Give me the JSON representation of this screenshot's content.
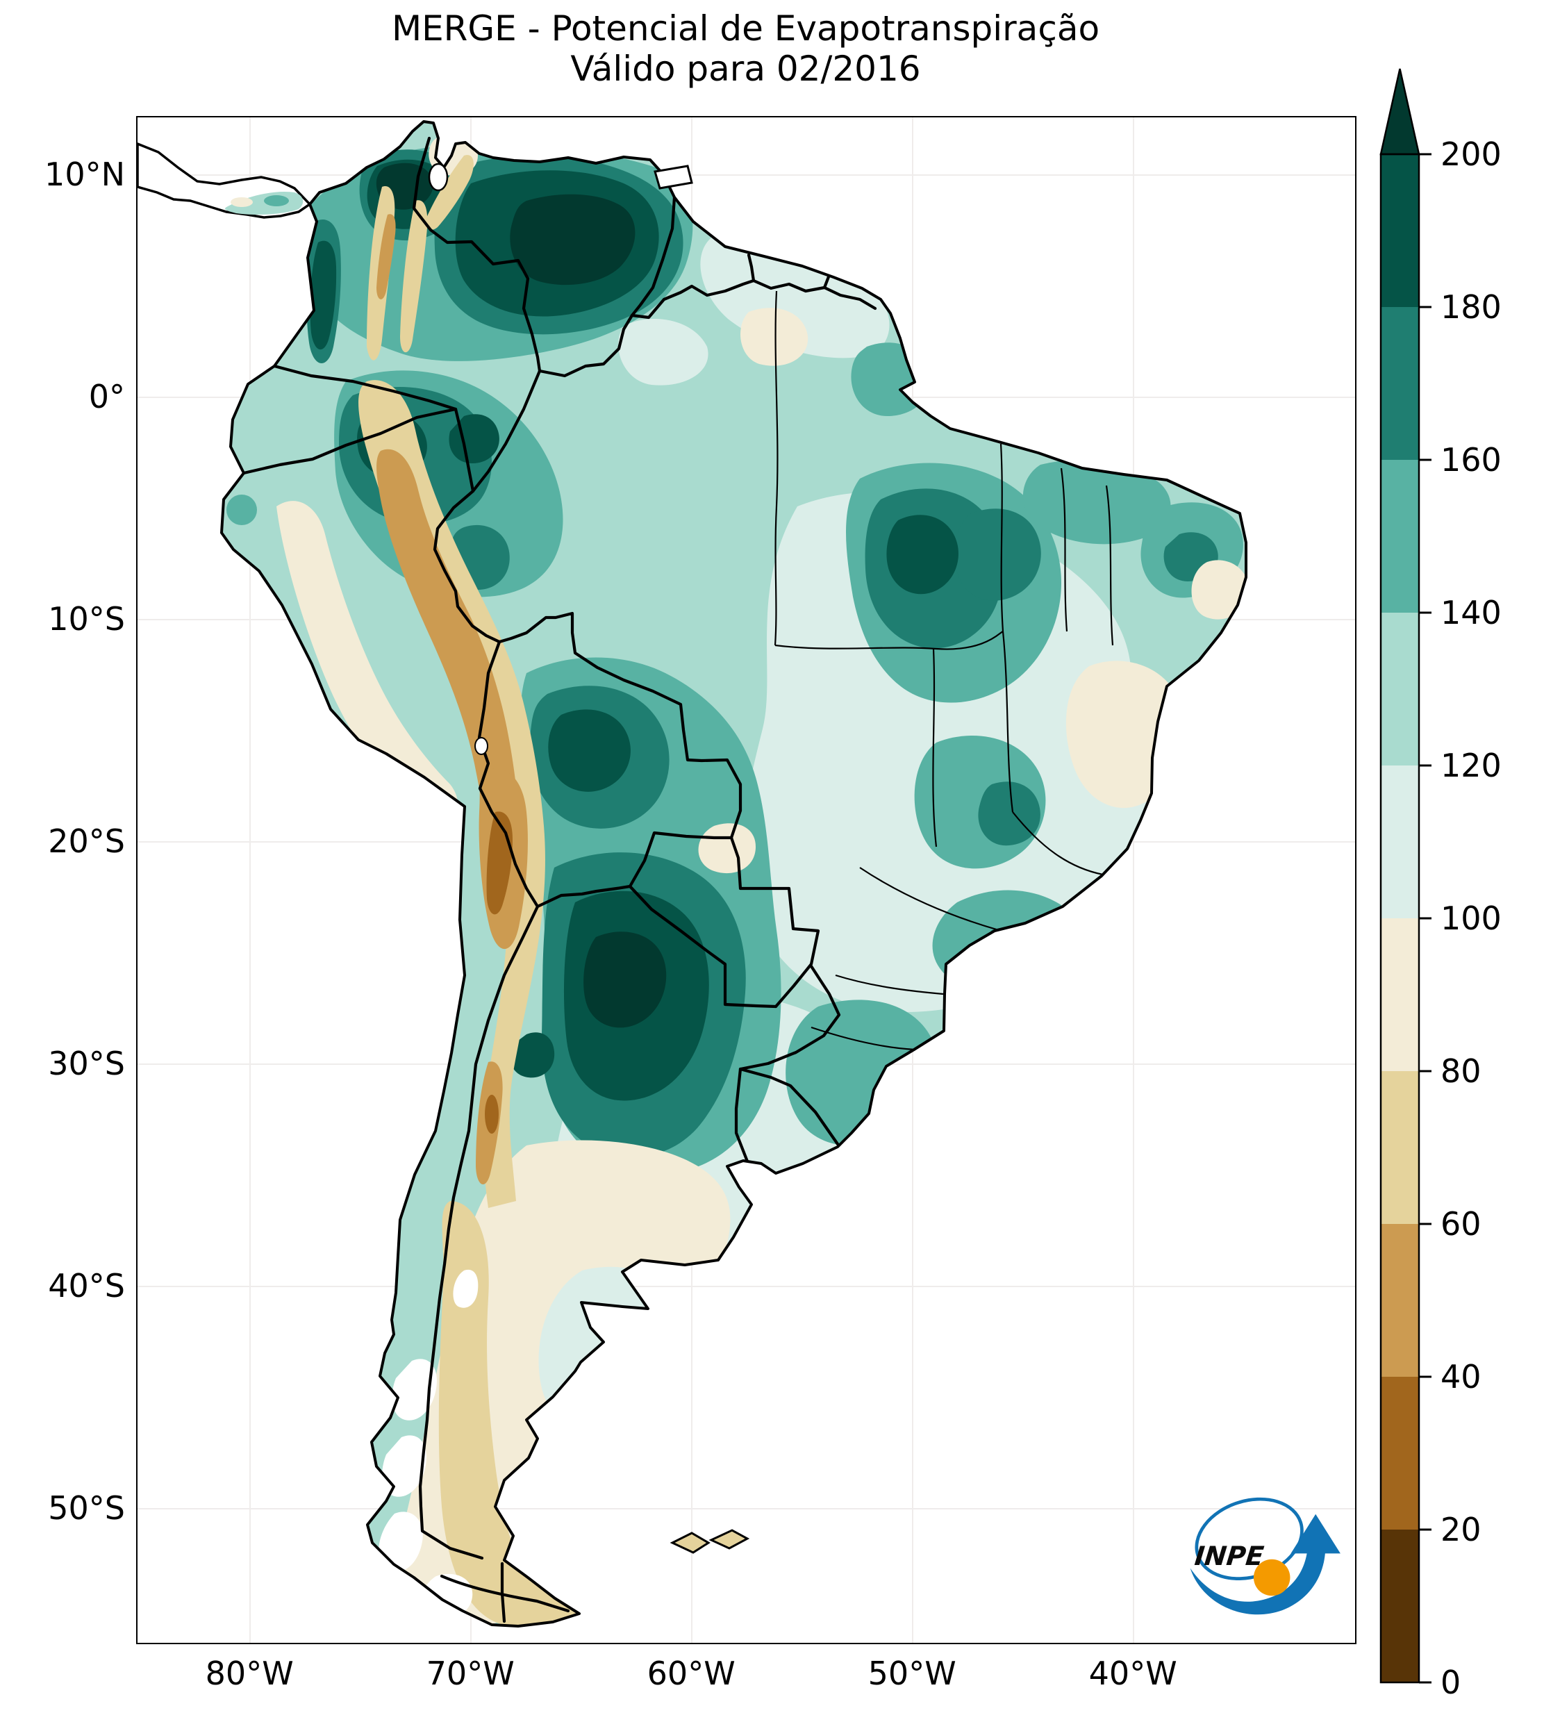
{
  "title": {
    "line1": "MERGE - Potencial de Evapotranspiração",
    "line2": "Válido para 02/2016"
  },
  "axes": {
    "lat_ticks": [
      {
        "label": "10°N",
        "lat": 10
      },
      {
        "label": "0°",
        "lat": 0
      },
      {
        "label": "10°S",
        "lat": -10
      },
      {
        "label": "20°S",
        "lat": -20
      },
      {
        "label": "30°S",
        "lat": -30
      },
      {
        "label": "40°S",
        "lat": -40
      },
      {
        "label": "50°S",
        "lat": -50
      }
    ],
    "lon_ticks": [
      {
        "label": "80°W",
        "lon_w": 80
      },
      {
        "label": "70°W",
        "lon_w": 70
      },
      {
        "label": "60°W",
        "lon_w": 60
      },
      {
        "label": "50°W",
        "lon_w": 50
      },
      {
        "label": "40°W",
        "lon_w": 40
      }
    ]
  },
  "colorbar": {
    "min": 0,
    "max": 200,
    "ticks": [
      0,
      20,
      40,
      60,
      80,
      100,
      120,
      140,
      160,
      180,
      200
    ],
    "bin_colors": [
      "#583407",
      "#a1661d",
      "#cc9b51",
      "#e5d39c",
      "#f3ecd7",
      "#dbeee9",
      "#a9dbcf",
      "#58b2a3",
      "#1f7e71",
      "#055447"
    ],
    "over_color": "#02392f"
  },
  "logo": {
    "text": "INPE",
    "blue": "#1173b5",
    "orange": "#f49a00"
  },
  "chart_data": {
    "type": "heatmap",
    "title": "MERGE - Potencial de Evapotranspiração",
    "subtitle": "Válido para 02/2016",
    "region": "South America",
    "projection_extent": {
      "lon_w": [
        85,
        30
      ],
      "lat": [
        -57,
        13
      ]
    },
    "colorbar_levels": [
      0,
      20,
      40,
      60,
      80,
      100,
      120,
      140,
      160,
      180,
      200
    ],
    "colorbar_extend": "max",
    "colormap": "BrBG (dark brown → cream → dark teal)",
    "legend_position": "right vertical colorbar",
    "grid": "faint graticule every 10 degrees",
    "readings": [
      {
        "area": "Northern Colombia / Caribbean coast",
        "value_range": "180-200+"
      },
      {
        "area": "Venezuela (Llanos / Orinoco basin)",
        "value_range": "180-200+"
      },
      {
        "area": "Pacific Chocó (W Colombia)",
        "value_range": "160-200"
      },
      {
        "area": "SW Amazon (S Colombia / NE Peru)",
        "value_range": "160-180"
      },
      {
        "area": "Central Amazon (Brazil)",
        "value_range": "120-140"
      },
      {
        "area": "Tocantins / Maranhão (dark core)",
        "value_range": "160-200"
      },
      {
        "area": "NE Brazil coastal band",
        "value_range": "140-160"
      },
      {
        "area": "Central-eastern Brazil",
        "value_range": "100-120"
      },
      {
        "area": "Bolivian lowlands",
        "value_range": "160-200"
      },
      {
        "area": "Paraguay / N Argentina (largest dark core)",
        "value_range": "180-200+"
      },
      {
        "area": "Andes ridge (Colombia to N Chile, Altiplano)",
        "value_range": "20-80"
      },
      {
        "area": "Peruvian coast / Atacama margin",
        "value_range": "60-100"
      },
      {
        "area": "Pampas / Uruguay / S Brazil",
        "value_range": "100-140"
      },
      {
        "area": "Patagonia (east)",
        "value_range": "80-100"
      },
      {
        "area": "Patagonia (west) and Tierra del Fuego",
        "value_range": "60-80"
      }
    ]
  }
}
